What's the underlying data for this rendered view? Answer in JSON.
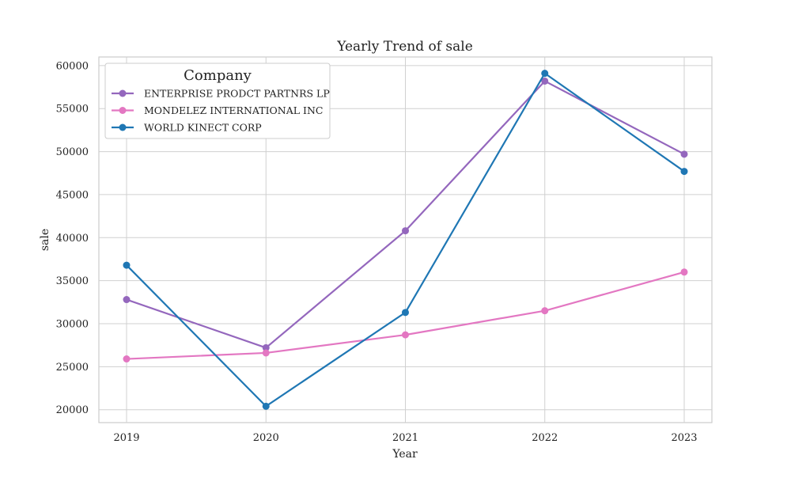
{
  "chart_data": {
    "type": "line",
    "title": "Yearly Trend of sale",
    "xlabel": "Year",
    "ylabel": "sale",
    "x": [
      "2019",
      "2020",
      "2021",
      "2022",
      "2023"
    ],
    "ylim": [
      18500,
      61000
    ],
    "yticks": [
      20000,
      25000,
      30000,
      35000,
      40000,
      45000,
      50000,
      55000,
      60000
    ],
    "grid": true,
    "legend": {
      "title": "Company",
      "placement": "top-left"
    },
    "series": [
      {
        "name": "ENTERPRISE PRODCT PARTNRS LP",
        "color": "#9467bd",
        "values": [
          32800,
          27200,
          40800,
          58200,
          49700
        ]
      },
      {
        "name": "MONDELEZ INTERNATIONAL INC",
        "color": "#e377c2",
        "values": [
          25900,
          26600,
          28700,
          31500,
          36000
        ]
      },
      {
        "name": "WORLD KINECT CORP",
        "color": "#1f77b4",
        "values": [
          36800,
          20400,
          31300,
          59100,
          47700
        ]
      }
    ]
  }
}
